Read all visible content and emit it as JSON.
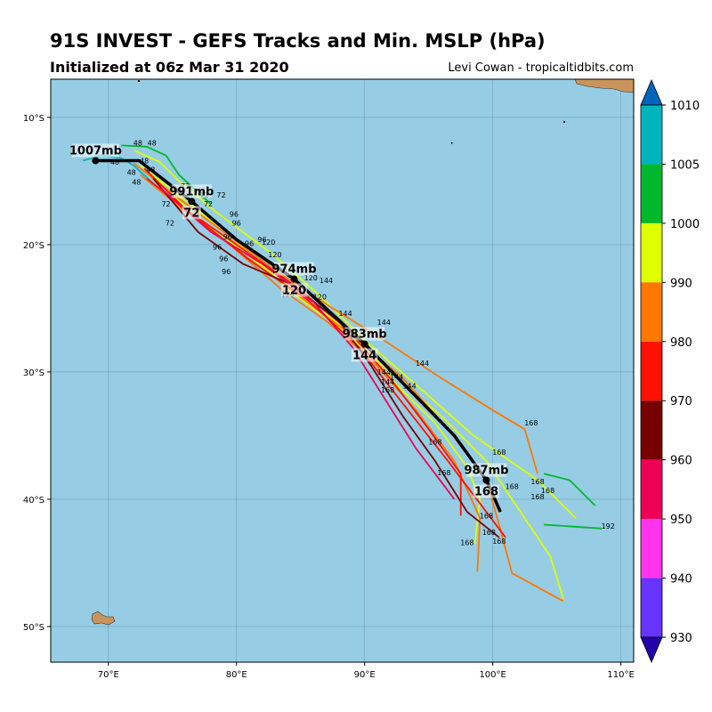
{
  "header": {
    "title": "91S INVEST - GEFS Tracks and Min. MSLP (hPa)",
    "subtitle": "Initialized at 06z Mar 31 2020",
    "credit": "Levi Cowan - tropicaltidbits.com"
  },
  "map": {
    "lon_range": [
      65.5,
      111.0
    ],
    "lat_range": [
      -52.8,
      -7.0
    ],
    "lon_ticks": [
      "70°E",
      "80°E",
      "90°E",
      "100°E",
      "110°E"
    ],
    "lat_ticks": [
      "10°S",
      "20°S",
      "30°S",
      "40°S",
      "50°S"
    ],
    "ocean_color": "#96cde4",
    "land_color": "#c8945a"
  },
  "colorbar": {
    "ticks": [
      "1010",
      "1005",
      "1000",
      "990",
      "980",
      "970",
      "960",
      "950",
      "940",
      "930"
    ],
    "colors": [
      "#0066bb",
      "#00b4be",
      "#00b82c",
      "#ddff00",
      "#ff7700",
      "#ff1100",
      "#770000",
      "#ee0055",
      "#ff33ee",
      "#6633ff",
      "#2200aa"
    ]
  },
  "mean_track": {
    "points": [
      {
        "lon": 69.0,
        "lat": -13.4
      },
      {
        "lon": 72.4,
        "lat": -13.4
      },
      {
        "lon": 76.5,
        "lat": -16.6
      },
      {
        "lon": 80.0,
        "lat": -19.6
      },
      {
        "lon": 84.5,
        "lat": -22.7
      },
      {
        "lon": 90.0,
        "lat": -27.8
      },
      {
        "lon": 97.0,
        "lat": -35.0
      },
      {
        "lon": 99.5,
        "lat": -38.5
      },
      {
        "lon": 100.6,
        "lat": -41.0
      }
    ],
    "labels": [
      {
        "pressure": "1007mb",
        "hour": "",
        "lon": 69.0,
        "lat": -13.4
      },
      {
        "pressure": "991mb",
        "hour": "72",
        "lon": 76.5,
        "lat": -16.6
      },
      {
        "pressure": "974mb",
        "hour": "120",
        "lon": 84.5,
        "lat": -22.7
      },
      {
        "pressure": "983mb",
        "hour": "144",
        "lon": 90.0,
        "lat": -27.8
      },
      {
        "pressure": "987mb",
        "hour": "168",
        "lon": 99.5,
        "lat": -38.5
      }
    ]
  },
  "member_tracks": [
    {
      "color": "#00b4be",
      "points": [
        [
          68.0,
          -13.4
        ],
        [
          69.5,
          -13.0
        ],
        [
          71.0,
          -13.2
        ],
        [
          72.0,
          -13.8
        ],
        [
          73.5,
          -15.2
        ]
      ]
    },
    {
      "color": "#00b82c",
      "points": [
        [
          71.0,
          -12.2
        ],
        [
          73.0,
          -12.3
        ],
        [
          74.5,
          -13.0
        ],
        [
          75.5,
          -14.5
        ],
        [
          78.0,
          -16.8
        ]
      ]
    },
    {
      "color": "#ddff00",
      "points": [
        [
          72.0,
          -12.6
        ],
        [
          74.0,
          -13.5
        ],
        [
          75.5,
          -15.0
        ],
        [
          78.5,
          -17.5
        ],
        [
          82.5,
          -20.5
        ],
        [
          86.5,
          -24.0
        ],
        [
          90.0,
          -27.5
        ],
        [
          94.0,
          -31.0
        ],
        [
          98.5,
          -35.0
        ],
        [
          103.5,
          -38.5
        ],
        [
          106.5,
          -41.5
        ]
      ]
    },
    {
      "color": "#ddff00",
      "points": [
        [
          72.5,
          -13.8
        ],
        [
          76.0,
          -16.5
        ],
        [
          80.0,
          -19.8
        ],
        [
          84.0,
          -23.5
        ],
        [
          88.0,
          -26.5
        ],
        [
          92.0,
          -30.0
        ],
        [
          96.0,
          -33.5
        ],
        [
          99.5,
          -37.0
        ],
        [
          101.5,
          -40.0
        ],
        [
          104.5,
          -44.5
        ],
        [
          105.5,
          -47.8
        ]
      ]
    },
    {
      "color": "#ddff00",
      "points": [
        [
          73.0,
          -14.2
        ],
        [
          76.5,
          -17.5
        ],
        [
          80.5,
          -20.5
        ],
        [
          85.0,
          -24.0
        ],
        [
          89.0,
          -27.0
        ],
        [
          92.5,
          -31.0
        ],
        [
          95.5,
          -34.0
        ],
        [
          98.0,
          -37.5
        ],
        [
          99.0,
          -40.0
        ],
        [
          98.6,
          -43.5
        ]
      ]
    },
    {
      "color": "#ff7700",
      "points": [
        [
          72.0,
          -13.6
        ],
        [
          75.0,
          -16.0
        ],
        [
          79.0,
          -19.0
        ],
        [
          83.0,
          -22.0
        ],
        [
          87.5,
          -25.0
        ],
        [
          91.5,
          -27.5
        ],
        [
          96.0,
          -30.5
        ],
        [
          100.0,
          -33.0
        ],
        [
          102.5,
          -34.5
        ],
        [
          103.5,
          -38.0
        ]
      ]
    },
    {
      "color": "#ff7700",
      "points": [
        [
          72.5,
          -14.5
        ],
        [
          75.5,
          -17.0
        ],
        [
          79.5,
          -20.0
        ],
        [
          83.5,
          -23.5
        ],
        [
          87.0,
          -26.0
        ],
        [
          90.5,
          -29.0
        ],
        [
          94.0,
          -33.0
        ],
        [
          97.0,
          -37.0
        ],
        [
          99.0,
          -41.5
        ],
        [
          98.8,
          -45.7
        ]
      ]
    },
    {
      "color": "#ff7700",
      "points": [
        [
          73.5,
          -15.2
        ],
        [
          77.5,
          -18.5
        ],
        [
          81.5,
          -21.5
        ],
        [
          85.5,
          -24.5
        ],
        [
          89.5,
          -27.5
        ],
        [
          93.0,
          -30.5
        ],
        [
          96.5,
          -34.5
        ],
        [
          99.5,
          -38.5
        ],
        [
          100.5,
          -42.0
        ],
        [
          101.5,
          -45.8
        ],
        [
          105.5,
          -48.0
        ]
      ]
    },
    {
      "color": "#ff1100",
      "points": [
        [
          72.8,
          -14.0
        ],
        [
          76.0,
          -17.2
        ],
        [
          80.0,
          -20.0
        ],
        [
          84.5,
          -23.2
        ],
        [
          88.5,
          -26.5
        ],
        [
          92.0,
          -30.5
        ],
        [
          95.0,
          -34.5
        ],
        [
          97.5,
          -38.0
        ],
        [
          97.5,
          -41.3
        ]
      ]
    },
    {
      "color": "#ff1100",
      "points": [
        [
          73.0,
          -14.8
        ],
        [
          77.0,
          -18.0
        ],
        [
          81.0,
          -21.2
        ],
        [
          85.5,
          -24.3
        ],
        [
          89.5,
          -28.0
        ],
        [
          93.0,
          -32.5
        ],
        [
          96.5,
          -37.0
        ],
        [
          99.5,
          -41.0
        ],
        [
          101.0,
          -43.0
        ]
      ]
    },
    {
      "color": "#770000",
      "points": [
        [
          73.5,
          -14.8
        ],
        [
          77.0,
          -19.0
        ],
        [
          80.5,
          -21.5
        ],
        [
          84.0,
          -23.0
        ],
        [
          88.0,
          -26.0
        ],
        [
          90.5,
          -29.5
        ],
        [
          93.0,
          -33.5
        ],
        [
          95.5,
          -37.0
        ],
        [
          98.0,
          -41.0
        ],
        [
          100.5,
          -43.0
        ]
      ]
    },
    {
      "color": "#ee0055",
      "points": [
        [
          74.0,
          -15.5
        ],
        [
          78.0,
          -19.0
        ],
        [
          82.0,
          -21.5
        ],
        [
          86.0,
          -24.5
        ],
        [
          89.0,
          -28.0
        ],
        [
          91.5,
          -32.0
        ],
        [
          94.0,
          -36.0
        ],
        [
          97.0,
          -40.0
        ]
      ]
    },
    {
      "color": "#00b82c",
      "points": [
        [
          104.0,
          -38.0
        ],
        [
          106.0,
          -38.5
        ],
        [
          108.0,
          -40.5
        ]
      ]
    },
    {
      "color": "#00b82c",
      "points": [
        [
          104.0,
          -42.0
        ],
        [
          108.5,
          -42.3
        ]
      ]
    }
  ],
  "small_labels": [
    {
      "text": "48",
      "lon": 72.3,
      "lat": -12.2
    },
    {
      "text": "48",
      "lon": 73.4,
      "lat": -12.2
    },
    {
      "text": "48",
      "lon": 70.5,
      "lat": -13.7
    },
    {
      "text": "48",
      "lon": 71.8,
      "lat": -14.5
    },
    {
      "text": "48",
      "lon": 72.2,
      "lat": -15.3
    },
    {
      "text": "48",
      "lon": 72.8,
      "lat": -13.6
    },
    {
      "text": "48",
      "lon": 73.3,
      "lat": -14.3
    },
    {
      "text": "72",
      "lon": 76.0,
      "lat": -15.6
    },
    {
      "text": "72",
      "lon": 77.5,
      "lat": -16.3
    },
    {
      "text": "72",
      "lon": 78.8,
      "lat": -16.3
    },
    {
      "text": "72",
      "lon": 74.5,
      "lat": -17.0
    },
    {
      "text": "72",
      "lon": 77.8,
      "lat": -17.0
    },
    {
      "text": "72",
      "lon": 74.8,
      "lat": -18.5
    },
    {
      "text": "96",
      "lon": 79.8,
      "lat": -17.8
    },
    {
      "text": "96",
      "lon": 80.0,
      "lat": -18.5
    },
    {
      "text": "96",
      "lon": 79.3,
      "lat": -19.6
    },
    {
      "text": "96",
      "lon": 81.0,
      "lat": -20.1
    },
    {
      "text": "96",
      "lon": 82.0,
      "lat": -19.8
    },
    {
      "text": "96",
      "lon": 78.5,
      "lat": -20.4
    },
    {
      "text": "96",
      "lon": 79.0,
      "lat": -21.3
    },
    {
      "text": "96",
      "lon": 79.2,
      "lat": -22.3
    },
    {
      "text": "120",
      "lon": 82.5,
      "lat": -20.0
    },
    {
      "text": "120",
      "lon": 83.0,
      "lat": -21.0
    },
    {
      "text": "120",
      "lon": 85.8,
      "lat": -22.8
    },
    {
      "text": "120",
      "lon": 84.0,
      "lat": -24.1
    },
    {
      "text": "120",
      "lon": 86.5,
      "lat": -24.3
    },
    {
      "text": "144",
      "lon": 87.0,
      "lat": -23.0
    },
    {
      "text": "144",
      "lon": 88.5,
      "lat": -25.6
    },
    {
      "text": "144",
      "lon": 91.5,
      "lat": -26.3
    },
    {
      "text": "144",
      "lon": 94.5,
      "lat": -29.5
    },
    {
      "text": "144",
      "lon": 91.5,
      "lat": -30.2
    },
    {
      "text": "144",
      "lon": 92.5,
      "lat": -30.6
    },
    {
      "text": "144",
      "lon": 91.8,
      "lat": -31.0
    },
    {
      "text": "144",
      "lon": 93.5,
      "lat": -31.3
    },
    {
      "text": "168",
      "lon": 91.8,
      "lat": -31.6
    },
    {
      "text": "168",
      "lon": 103.0,
      "lat": -34.2
    },
    {
      "text": "168",
      "lon": 95.5,
      "lat": -35.7
    },
    {
      "text": "168",
      "lon": 100.5,
      "lat": -36.5
    },
    {
      "text": "168",
      "lon": 96.2,
      "lat": -38.1
    },
    {
      "text": "168",
      "lon": 103.5,
      "lat": -38.8
    },
    {
      "text": "168",
      "lon": 104.3,
      "lat": -39.5
    },
    {
      "text": "168",
      "lon": 103.5,
      "lat": -40.0
    },
    {
      "text": "168",
      "lon": 101.5,
      "lat": -39.2
    },
    {
      "text": "168",
      "lon": 99.5,
      "lat": -41.5
    },
    {
      "text": "168",
      "lon": 99.7,
      "lat": -42.8
    },
    {
      "text": "168",
      "lon": 100.5,
      "lat": -43.5
    },
    {
      "text": "168",
      "lon": 98.0,
      "lat": -43.6
    },
    {
      "text": "192",
      "lon": 109.0,
      "lat": -42.3
    }
  ]
}
